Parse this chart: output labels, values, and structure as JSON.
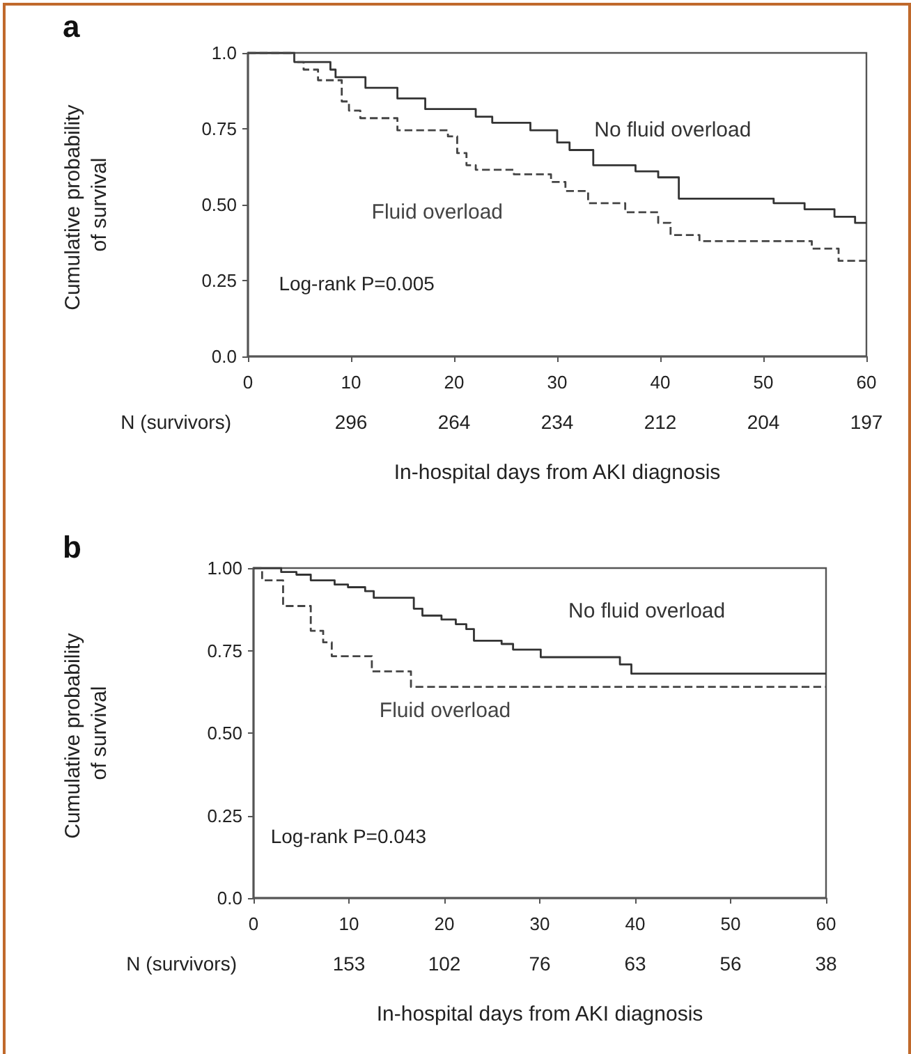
{
  "chart_data": [
    {
      "type": "step",
      "title": "a",
      "xlabel": "In-hospital days from AKI diagnosis",
      "ylabel": "Cumulative probability of survival",
      "xlim": [
        0,
        60
      ],
      "xticks": [
        0,
        10,
        20,
        30,
        40,
        50,
        60
      ],
      "ylim": [
        0,
        1
      ],
      "yticks": [
        {
          "value": 0,
          "label": "0.0"
        },
        {
          "value": 0.25,
          "label": "0.25"
        },
        {
          "value": 0.5,
          "label": "0.50"
        },
        {
          "value": 0.75,
          "label": "0.75"
        },
        {
          "value": 1,
          "label": "1.0"
        }
      ],
      "grid": false,
      "legend": false,
      "marker": "none",
      "annotations": [
        "Log-rank P=0.005",
        "N (survivors)",
        "296",
        "264",
        "234",
        "212",
        "204",
        "197"
      ],
      "series": [
        {
          "name": "No fluid overload",
          "color": "#333333",
          "line_style": "solid",
          "x": [
            0,
            4.5,
            8,
            8.5,
            11.4,
            14.5,
            17.2,
            22.1,
            23.7,
            27.4,
            30,
            31.2,
            33.5,
            37.6,
            39.8,
            41.8,
            51,
            54,
            56.9,
            58.9,
            60
          ],
          "values": [
            1,
            0.97,
            0.945,
            0.92,
            0.885,
            0.85,
            0.815,
            0.79,
            0.77,
            0.745,
            0.705,
            0.68,
            0.63,
            0.61,
            0.59,
            0.52,
            0.505,
            0.485,
            0.46,
            0.44,
            0.44
          ]
        },
        {
          "name": "Fluid overload",
          "color": "#444444",
          "line_style": "dashed",
          "x": [
            0,
            4.5,
            5.4,
            6.8,
            9.1,
            9.8,
            10.9,
            14.5,
            19.4,
            20.3,
            21.2,
            22.1,
            25.8,
            29.4,
            30.8,
            33,
            36.6,
            39.8,
            41,
            43.8,
            54.7,
            57.3,
            60
          ],
          "values": [
            1,
            0.97,
            0.945,
            0.91,
            0.84,
            0.81,
            0.785,
            0.745,
            0.725,
            0.67,
            0.63,
            0.615,
            0.6,
            0.575,
            0.545,
            0.505,
            0.475,
            0.44,
            0.4,
            0.38,
            0.355,
            0.315,
            0.315
          ]
        }
      ]
    },
    {
      "type": "step",
      "title": "b",
      "xlabel": "In-hospital days from AKI diagnosis",
      "ylabel": "Cumulative probability of survival",
      "xlim": [
        0,
        60
      ],
      "xticks": [
        0,
        10,
        20,
        30,
        40,
        50,
        60
      ],
      "ylim": [
        0,
        1
      ],
      "yticks": [
        {
          "value": 0,
          "label": "0.0"
        },
        {
          "value": 0.25,
          "label": "0.25"
        },
        {
          "value": 0.5,
          "label": "0.50"
        },
        {
          "value": 0.75,
          "label": "0.75"
        },
        {
          "value": 1,
          "label": "1.00"
        }
      ],
      "grid": false,
      "legend": false,
      "marker": "none",
      "annotations": [
        "Log-rank P=0.043",
        "N (survivors)",
        "153",
        "102",
        "76",
        "63",
        "56",
        "38"
      ],
      "series": [
        {
          "name": "No fluid overload",
          "color": "#333333",
          "line_style": "solid",
          "x": [
            0,
            2.9,
            4.5,
            6,
            8.5,
            9.9,
            11.7,
            12.6,
            16.8,
            17.7,
            19.7,
            21.2,
            22.3,
            23.1,
            26,
            27.2,
            30.1,
            38.4,
            39.6,
            60
          ],
          "values": [
            1,
            0.988,
            0.98,
            0.963,
            0.95,
            0.942,
            0.93,
            0.91,
            0.877,
            0.856,
            0.844,
            0.83,
            0.815,
            0.78,
            0.77,
            0.753,
            0.73,
            0.708,
            0.68,
            0.68
          ]
        },
        {
          "name": "Fluid overload",
          "color": "#444444",
          "line_style": "dashed",
          "x": [
            0,
            0.9,
            3.1,
            6,
            7.3,
            8.2,
            12.4,
            16.5,
            60
          ],
          "values": [
            1,
            0.963,
            0.885,
            0.81,
            0.775,
            0.733,
            0.687,
            0.64,
            0.64
          ]
        }
      ]
    }
  ]
}
